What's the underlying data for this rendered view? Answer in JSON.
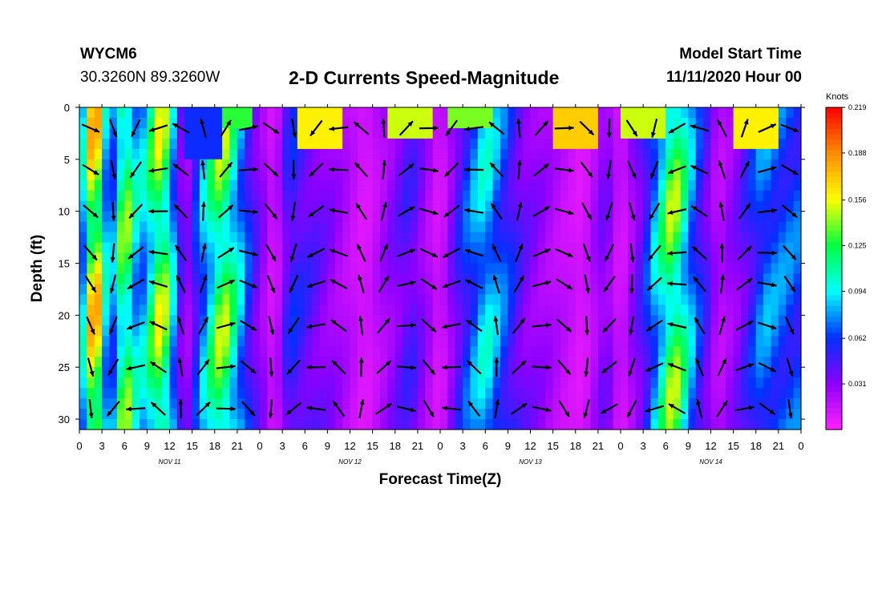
{
  "header": {
    "station": "WYCM6",
    "coords": "30.3260N 89.3260W",
    "title": "2-D Currents Speed-Magnitude",
    "start_label": "Model Start Time",
    "start_value": "11/11/2020 Hour 00"
  },
  "chart_data": {
    "type": "heatmap",
    "title": "2-D Currents Speed-Magnitude",
    "xlabel": "Forecast Time(Z)",
    "ylabel": "Depth (ft)",
    "x_tick_labels": [
      "0",
      "3",
      "6",
      "9",
      "12",
      "15",
      "18",
      "21",
      "0",
      "3",
      "6",
      "9",
      "12",
      "15",
      "18",
      "21",
      "0",
      "3",
      "6",
      "9",
      "12",
      "15",
      "18",
      "21",
      "0",
      "3",
      "6",
      "9",
      "12",
      "15",
      "18",
      "21",
      "0"
    ],
    "x_range_hours": [
      0,
      96
    ],
    "day_labels": [
      {
        "label": "NOV 11",
        "hour": 12
      },
      {
        "label": "NOV 12",
        "hour": 36
      },
      {
        "label": "NOV 13",
        "hour": 60
      },
      {
        "label": "NOV 14",
        "hour": 84
      }
    ],
    "y_range_ft": [
      0,
      31
    ],
    "y_inverted": true,
    "y_ticks": [
      "0",
      "5",
      "10",
      "15",
      "20",
      "25",
      "30"
    ],
    "colorbar": {
      "unit": "Knots",
      "tick_labels": [
        "0.219",
        "0.188",
        "0.156",
        "0.125",
        "0.094",
        "0.062",
        "0.031"
      ],
      "range": [
        0,
        0.219
      ]
    },
    "speed_by_hour": [
      {
        "hour": 0,
        "speed": 0.06
      },
      {
        "hour": 2,
        "speed": 0.2
      },
      {
        "hour": 4,
        "speed": 0.06
      },
      {
        "hour": 6,
        "speed": 0.15
      },
      {
        "hour": 8,
        "speed": 0.08
      },
      {
        "hour": 11,
        "speed": 0.16
      },
      {
        "hour": 14,
        "speed": 0.02
      },
      {
        "hour": 17,
        "speed": 0.1
      },
      {
        "hour": 19,
        "speed": 0.15
      },
      {
        "hour": 23,
        "speed": 0.05
      },
      {
        "hour": 26,
        "speed": 0.01
      },
      {
        "hour": 28,
        "speed": 0.06
      },
      {
        "hour": 34,
        "speed": 0.03
      },
      {
        "hour": 38,
        "speed": 0.01
      },
      {
        "hour": 41,
        "speed": 0.03
      },
      {
        "hour": 44,
        "speed": 0.05
      },
      {
        "hour": 48,
        "speed": 0.01
      },
      {
        "hour": 51,
        "speed": 0.06
      },
      {
        "hour": 54,
        "speed": 0.1
      },
      {
        "hour": 59,
        "speed": 0.04
      },
      {
        "hour": 64,
        "speed": 0.02
      },
      {
        "hour": 67,
        "speed": 0.01
      },
      {
        "hour": 70,
        "speed": 0.04
      },
      {
        "hour": 72,
        "speed": 0.01
      },
      {
        "hour": 75,
        "speed": 0.05
      },
      {
        "hour": 79,
        "speed": 0.15
      },
      {
        "hour": 82,
        "speed": 0.07
      },
      {
        "hour": 85,
        "speed": 0.02
      },
      {
        "hour": 88,
        "speed": 0.04
      },
      {
        "hour": 91,
        "speed": 0.08
      },
      {
        "hour": 96,
        "speed": 0.07
      }
    ],
    "surface_layer": [
      {
        "hour": 17,
        "speed": 0.06,
        "depth_ft": 5
      },
      {
        "hour": 20,
        "speed": 0.13,
        "depth_ft": 2
      },
      {
        "hour": 32,
        "speed": 0.16,
        "depth_ft": 4
      },
      {
        "hour": 44,
        "speed": 0.15,
        "depth_ft": 3
      },
      {
        "hour": 52,
        "speed": 0.14,
        "depth_ft": 2
      },
      {
        "hour": 66,
        "speed": 0.17,
        "depth_ft": 4
      },
      {
        "hour": 75,
        "speed": 0.15,
        "depth_ft": 3
      },
      {
        "hour": 90,
        "speed": 0.16,
        "depth_ft": 4
      }
    ]
  },
  "colors": {
    "scale": [
      "#ff20ff",
      "#8c00ff",
      "#0030ff",
      "#00ffff",
      "#00ff40",
      "#ffff00",
      "#ff8c00",
      "#ff0000"
    ]
  }
}
